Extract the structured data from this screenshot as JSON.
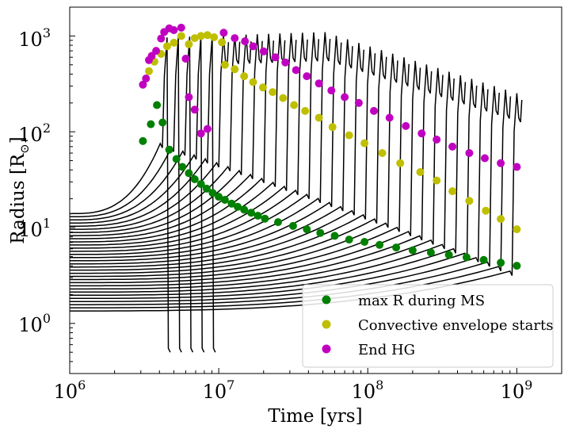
{
  "chart_data": {
    "type": "line",
    "xlabel": "Time [yrs]",
    "ylabel": "Radius [R",
    "ylabel_sub": "⊙",
    "ylabel_close": "]",
    "xscale": "log",
    "yscale": "log",
    "xlim": [
      1000000,
      2000000000
    ],
    "ylim": [
      0.3,
      2000
    ],
    "x_ticks": [
      {
        "value": 1000000,
        "base": "10",
        "exp": "6"
      },
      {
        "value": 10000000,
        "base": "10",
        "exp": "7"
      },
      {
        "value": 100000000,
        "base": "10",
        "exp": "8"
      },
      {
        "value": 1000000000,
        "base": "10",
        "exp": "9"
      }
    ],
    "y_ticks": [
      {
        "value": 1,
        "base": "10",
        "exp": "0"
      },
      {
        "value": 10,
        "base": "10",
        "exp": "1"
      },
      {
        "value": 100,
        "base": "10",
        "exp": "2"
      },
      {
        "value": 1000,
        "base": "10",
        "exp": "3"
      }
    ],
    "grid": false,
    "legend_position": "bottom-right",
    "tracks": {
      "count": 32,
      "lifetime_range": [
        4500000,
        1000000000
      ],
      "initial_radius_range": [
        1.35,
        14
      ]
    },
    "series": [
      {
        "name": "max R during MS",
        "color": "#008000",
        "marker": "circle",
        "points": [
          [
            3100000,
            80
          ],
          [
            3500000,
            120
          ],
          [
            3850000,
            190
          ],
          [
            4200000,
            125
          ],
          [
            4650000,
            65
          ],
          [
            5200000,
            52
          ],
          [
            5700000,
            43
          ],
          [
            6300000,
            37
          ],
          [
            6900000,
            32
          ],
          [
            7600000,
            28.5
          ],
          [
            8300000,
            25.5
          ],
          [
            9100000,
            23
          ],
          [
            10000000,
            21
          ],
          [
            11000000,
            19.5
          ],
          [
            12200000,
            17.8
          ],
          [
            13400000,
            16.5
          ],
          [
            14800000,
            15.4
          ],
          [
            16500000,
            14.3
          ],
          [
            18300000,
            13.3
          ],
          [
            20400000,
            12.4
          ],
          [
            25000000,
            11.4
          ],
          [
            31500000,
            10.4
          ],
          [
            39000000,
            9.6
          ],
          [
            48000000,
            8.8
          ],
          [
            60000000,
            8.2
          ],
          [
            75000000,
            7.5
          ],
          [
            95000000,
            7.1
          ],
          [
            120000000,
            6.6
          ],
          [
            155000000,
            6.2
          ],
          [
            200000000,
            5.8
          ],
          [
            265000000,
            5.5
          ],
          [
            350000000,
            5.2
          ],
          [
            460000000,
            4.9
          ],
          [
            600000000,
            4.6
          ],
          [
            780000000,
            4.3
          ],
          [
            1000000000,
            4.0
          ]
        ]
      },
      {
        "name": "Convective envelope starts",
        "color": "#bfbf00",
        "marker": "circle",
        "points": [
          [
            3400000,
            430
          ],
          [
            3700000,
            540
          ],
          [
            4100000,
            650
          ],
          [
            4500000,
            780
          ],
          [
            5000000,
            850
          ],
          [
            5600000,
            1000
          ],
          [
            6300000,
            820
          ],
          [
            6900000,
            950
          ],
          [
            7600000,
            1000
          ],
          [
            8400000,
            1020
          ],
          [
            9300000,
            970
          ],
          [
            10500000,
            860
          ],
          [
            11000000,
            500
          ],
          [
            12800000,
            450
          ],
          [
            14800000,
            380
          ],
          [
            17000000,
            330
          ],
          [
            19800000,
            290
          ],
          [
            23000000,
            260
          ],
          [
            27000000,
            225
          ],
          [
            32000000,
            190
          ],
          [
            38000000,
            165
          ],
          [
            47000000,
            140
          ],
          [
            58000000,
            112
          ],
          [
            75000000,
            92
          ],
          [
            95000000,
            76
          ],
          [
            125000000,
            60
          ],
          [
            165000000,
            47
          ],
          [
            225000000,
            38
          ],
          [
            290000000,
            31
          ],
          [
            370000000,
            24
          ],
          [
            480000000,
            19
          ],
          [
            620000000,
            15
          ],
          [
            780000000,
            12.3
          ],
          [
            1000000000,
            9.6
          ]
        ]
      },
      {
        "name": "End HG",
        "color": "#c000c0",
        "marker": "circle",
        "points": [
          [
            3100000,
            310
          ],
          [
            3250000,
            360
          ],
          [
            3400000,
            560
          ],
          [
            3550000,
            620
          ],
          [
            3800000,
            700
          ],
          [
            4100000,
            940
          ],
          [
            4300000,
            1100
          ],
          [
            4650000,
            1200
          ],
          [
            5000000,
            1150
          ],
          [
            5600000,
            1220
          ],
          [
            6000000,
            580
          ],
          [
            6300000,
            230
          ],
          [
            6900000,
            170
          ],
          [
            7600000,
            96
          ],
          [
            8400000,
            107
          ],
          [
            10800000,
            1080
          ],
          [
            12800000,
            950
          ],
          [
            15000000,
            880
          ],
          [
            17000000,
            780
          ],
          [
            20000000,
            690
          ],
          [
            24000000,
            600
          ],
          [
            28000000,
            530
          ],
          [
            33000000,
            440
          ],
          [
            39000000,
            380
          ],
          [
            47000000,
            320
          ],
          [
            57000000,
            270
          ],
          [
            70000000,
            230
          ],
          [
            87000000,
            200
          ],
          [
            110000000,
            165
          ],
          [
            140000000,
            140
          ],
          [
            180000000,
            115
          ],
          [
            230000000,
            96
          ],
          [
            290000000,
            83
          ],
          [
            370000000,
            70
          ],
          [
            480000000,
            60
          ],
          [
            610000000,
            53
          ],
          [
            780000000,
            47
          ],
          [
            1000000000,
            43
          ]
        ]
      }
    ]
  }
}
